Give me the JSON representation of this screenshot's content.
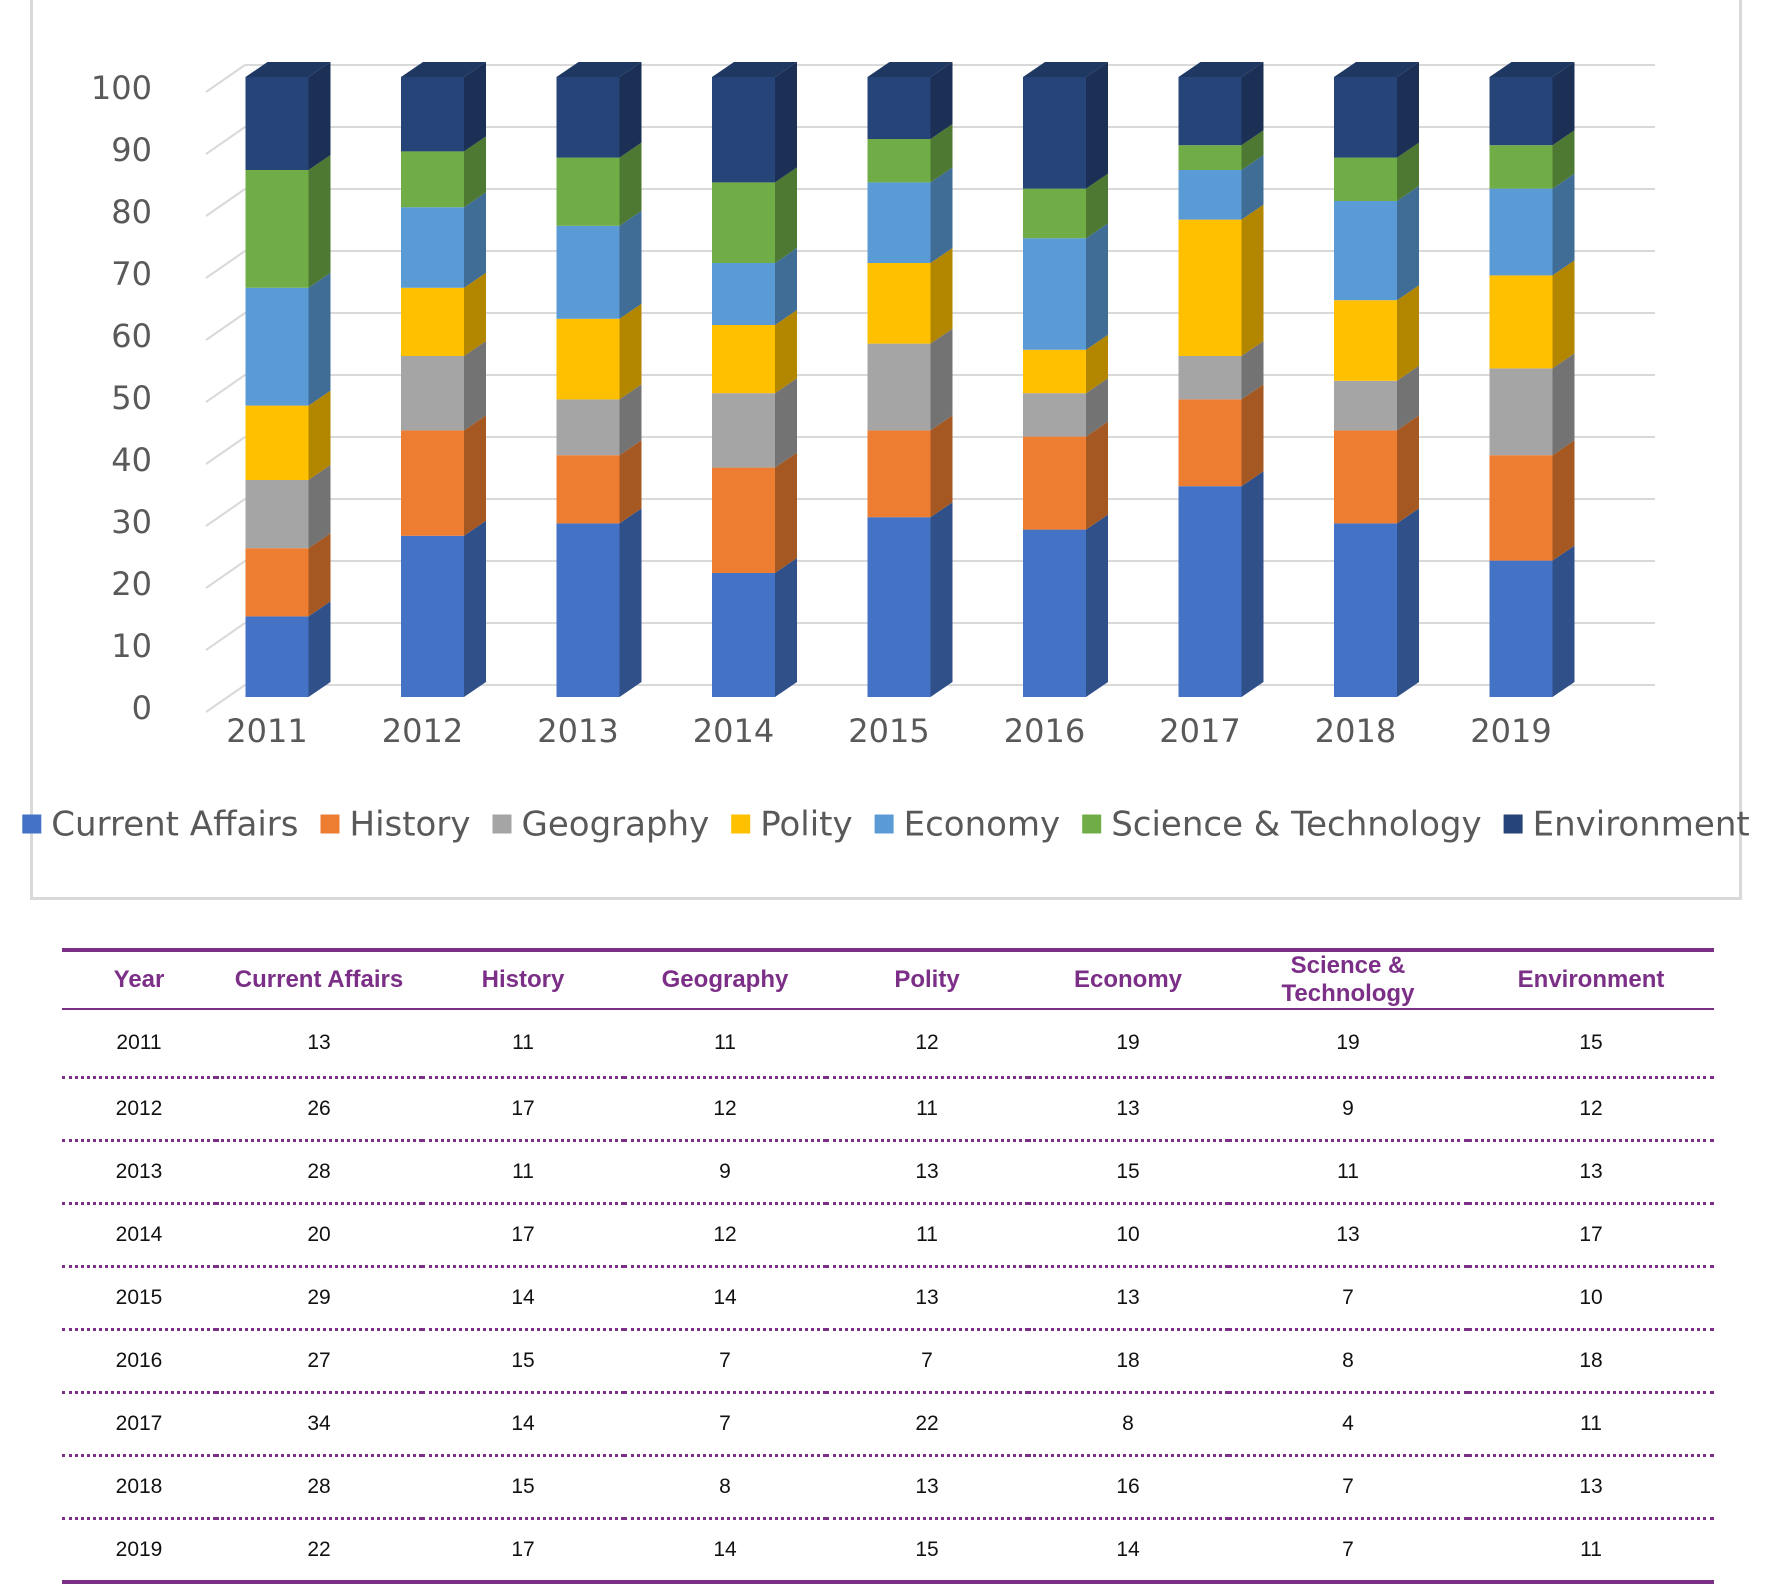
{
  "chart_data": {
    "type": "bar",
    "stacked": true,
    "style": "3d-column",
    "categories": [
      "2011",
      "2012",
      "2013",
      "2014",
      "2015",
      "2016",
      "2017",
      "2018",
      "2019"
    ],
    "series": [
      {
        "name": "Current Affairs",
        "color": "#4472c4",
        "values": [
          13,
          26,
          28,
          20,
          29,
          27,
          34,
          28,
          22
        ]
      },
      {
        "name": "History",
        "color": "#ed7d31",
        "values": [
          11,
          17,
          11,
          17,
          14,
          15,
          14,
          15,
          17
        ]
      },
      {
        "name": "Geography",
        "color": "#a5a5a5",
        "values": [
          11,
          12,
          9,
          12,
          14,
          7,
          7,
          8,
          14
        ]
      },
      {
        "name": "Polity",
        "color": "#ffc000",
        "values": [
          12,
          11,
          13,
          11,
          13,
          7,
          22,
          13,
          15
        ]
      },
      {
        "name": "Economy",
        "color": "#5b9bd5",
        "values": [
          19,
          13,
          15,
          10,
          13,
          18,
          8,
          16,
          14
        ]
      },
      {
        "name": "Science & Technology",
        "color": "#70ad47",
        "values": [
          19,
          9,
          11,
          13,
          7,
          8,
          4,
          7,
          7
        ]
      },
      {
        "name": "Environment",
        "color": "#264478",
        "values": [
          15,
          12,
          13,
          17,
          10,
          18,
          11,
          13,
          11
        ]
      }
    ],
    "y_ticks": [
      "0",
      "10",
      "20",
      "30",
      "40",
      "50",
      "60",
      "70",
      "80",
      "90",
      "100"
    ],
    "ylim": [
      0,
      100
    ],
    "grid": true,
    "legend_position": "bottom"
  },
  "table": {
    "headers": [
      "Year",
      "Current Affairs",
      "History",
      "Geography",
      "Polity",
      "Economy",
      "Science & Technology",
      "Environment"
    ],
    "rows": [
      [
        "2011",
        "13",
        "11",
        "11",
        "12",
        "19",
        "19",
        "15"
      ],
      [
        "2012",
        "26",
        "17",
        "12",
        "11",
        "13",
        "9",
        "12"
      ],
      [
        "2013",
        "28",
        "11",
        "9",
        "13",
        "15",
        "11",
        "13"
      ],
      [
        "2014",
        "20",
        "17",
        "12",
        "11",
        "10",
        "13",
        "17"
      ],
      [
        "2015",
        "29",
        "14",
        "14",
        "13",
        "13",
        "7",
        "10"
      ],
      [
        "2016",
        "27",
        "15",
        "7",
        "7",
        "18",
        "8",
        "18"
      ],
      [
        "2017",
        "34",
        "14",
        "7",
        "22",
        "8",
        "4",
        "11"
      ],
      [
        "2018",
        "28",
        "15",
        "8",
        "13",
        "16",
        "7",
        "13"
      ],
      [
        "2019",
        "22",
        "17",
        "14",
        "15",
        "14",
        "7",
        "11"
      ]
    ],
    "accent_color": "#7b2f87"
  }
}
